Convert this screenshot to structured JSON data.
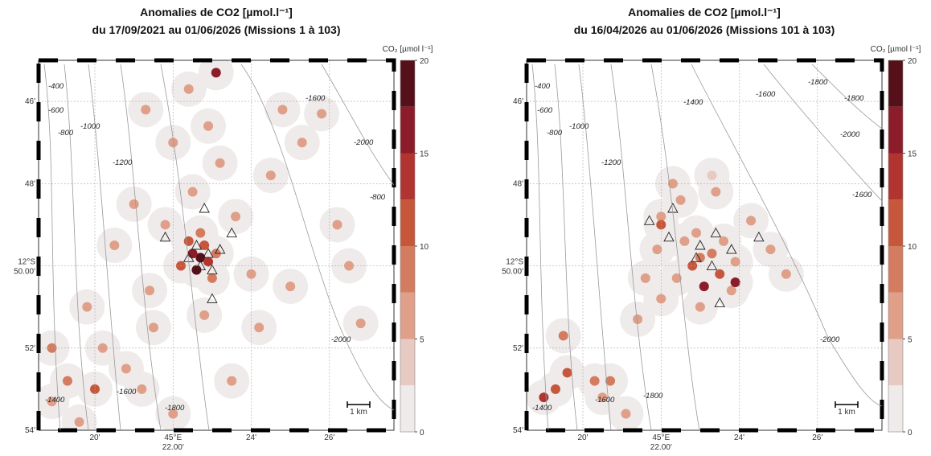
{
  "maps": [
    {
      "title": "Anomalies de CO2 [µmol.l⁻¹]",
      "subtitle": "du 17/09/2021 au 01/06/2026 (Missions 1 à 103)",
      "colorbar": {
        "label": "CO₂ [µmol l⁻¹]",
        "lim": [
          0,
          20
        ],
        "ticks": [
          0,
          5,
          10,
          15,
          20
        ],
        "colors": [
          "#efebeb",
          "#e7cbc2",
          "#df9f88",
          "#d47c60",
          "#c6573b",
          "#b13430",
          "#8c1c29",
          "#561019"
        ]
      },
      "lon_lim": [
        18.56,
        27.65
      ],
      "lat_lim": [
        45,
        54
      ],
      "lon_ticks": [
        {
          "value": 20,
          "label": "20'"
        },
        {
          "value": 22,
          "label": "45°E",
          "sublabel": "22.00'"
        },
        {
          "value": 24,
          "label": "24'"
        },
        {
          "value": 26,
          "label": "26'"
        }
      ],
      "lat_ticks": [
        {
          "value": 46,
          "label": "46'"
        },
        {
          "value": 48,
          "label": "48'"
        },
        {
          "value": 50,
          "label": "12°S",
          "sublabel": "50.00'"
        },
        {
          "value": 52,
          "label": "52'"
        },
        {
          "value": 54,
          "label": "54'"
        }
      ],
      "contour_labels": [
        "-400",
        "-600",
        "-800",
        "-1000",
        "-1200",
        "-1400",
        "-1600",
        "-1800",
        "-2000",
        "-1600",
        "-2000",
        "-800"
      ],
      "scale_label": "1 km",
      "points": {
        "lon": [
          22.7,
          22.5,
          22.9,
          22.6,
          22.8,
          22.4,
          23.1,
          22.2,
          23.0,
          22.7,
          21.8,
          23.6,
          21.4,
          24.0,
          22.5,
          23.2,
          22.9,
          22.0,
          24.5,
          25.3,
          25.8,
          21.0,
          20.5,
          19.8,
          20.2,
          19.3,
          18.9,
          19.6,
          20.8,
          21.5,
          22.8,
          24.2,
          25.0,
          26.5,
          26.8,
          21.2,
          22.0,
          23.5,
          18.9,
          20.0,
          22.4,
          21.3,
          26.2,
          24.8,
          23.1
        ],
        "lat": [
          49.8,
          49.7,
          49.9,
          50.1,
          49.5,
          49.4,
          49.7,
          50.0,
          50.3,
          49.2,
          49.0,
          48.8,
          50.6,
          50.2,
          48.2,
          47.5,
          46.6,
          47.0,
          47.8,
          47.0,
          46.3,
          48.5,
          49.5,
          51.0,
          52.0,
          52.8,
          53.3,
          53.8,
          52.5,
          51.5,
          51.2,
          51.5,
          50.5,
          50.0,
          51.4,
          53.0,
          53.6,
          52.8,
          52.0,
          53.0,
          45.7,
          46.2,
          49.0,
          46.2,
          45.3
        ],
        "values": [
          18,
          16,
          14,
          19,
          12,
          11,
          9,
          10,
          8,
          9,
          7,
          7,
          6,
          7,
          6,
          6,
          7,
          6,
          5,
          6,
          6,
          6,
          6,
          6,
          7,
          8,
          6,
          6,
          6,
          7,
          6,
          6,
          6,
          5,
          6,
          6,
          6,
          6,
          9,
          10,
          7,
          6,
          6,
          6,
          16
        ]
      },
      "triangles": {
        "lon": [
          22.6,
          22.9,
          23.2,
          22.7,
          23.0,
          22.4,
          22.8,
          21.8,
          23.5,
          23.0
        ],
        "lat": [
          49.5,
          49.7,
          49.6,
          50.0,
          50.1,
          49.8,
          48.6,
          49.3,
          49.2,
          50.8
        ]
      }
    },
    {
      "title": "Anomalies de CO2 [µmol.l⁻¹]",
      "subtitle": "du 16/04/2026 au 01/06/2026 (Missions 101 à 103)",
      "colorbar": {
        "label": "CO₂ [µmol l⁻¹]",
        "lim": [
          0,
          20
        ],
        "ticks": [
          0,
          5,
          10,
          15,
          20
        ],
        "colors": [
          "#efebeb",
          "#e7cbc2",
          "#df9f88",
          "#d47c60",
          "#c6573b",
          "#b13430",
          "#8c1c29",
          "#561019"
        ]
      },
      "lon_lim": [
        18.56,
        27.65
      ],
      "lat_lim": [
        45,
        54
      ],
      "lon_ticks": [
        {
          "value": 20,
          "label": "20'"
        },
        {
          "value": 22,
          "label": "45°E",
          "sublabel": "22.00'"
        },
        {
          "value": 24,
          "label": "24'"
        },
        {
          "value": 26,
          "label": "26'"
        }
      ],
      "lat_ticks": [
        {
          "value": 46,
          "label": "46'"
        },
        {
          "value": 48,
          "label": "48'"
        },
        {
          "value": 50,
          "label": "12°S",
          "sublabel": "50.00'"
        },
        {
          "value": 52,
          "label": "52'"
        },
        {
          "value": 54,
          "label": "54'"
        }
      ],
      "contour_labels": [
        "-400",
        "-600",
        "-800",
        "-1000",
        "-1200",
        "-1400",
        "-1600",
        "-1800",
        "-2000",
        "-1600",
        "-1800",
        "-2000",
        "-1400",
        "-1600",
        "-1800"
      ],
      "scale_label": "1 km",
      "points": {
        "lon": [
          23.0,
          23.3,
          22.8,
          23.5,
          23.6,
          22.6,
          23.9,
          22.4,
          23.1,
          22.9,
          22.0,
          22.5,
          23.4,
          24.3,
          24.8,
          25.2,
          21.9,
          21.6,
          22.0,
          23.0,
          23.8,
          22.3,
          23.3,
          21.4,
          19.6,
          20.3,
          20.7,
          19.0,
          19.3,
          21.1,
          20.5,
          19.5,
          22.0,
          23.9
        ],
        "lat": [
          49.8,
          49.7,
          50.0,
          50.2,
          49.4,
          49.4,
          49.9,
          50.3,
          50.5,
          49.2,
          48.8,
          48.4,
          48.2,
          48.9,
          49.6,
          50.2,
          49.6,
          50.3,
          50.8,
          51.0,
          50.6,
          48.0,
          47.8,
          51.3,
          52.6,
          52.8,
          52.8,
          53.2,
          53.0,
          53.6,
          53.2,
          51.7,
          49.0,
          50.4
        ],
        "values": [
          9,
          8,
          12,
          10,
          7,
          6,
          6,
          6,
          15,
          6,
          6,
          6,
          6,
          6,
          6,
          6,
          6,
          6,
          6,
          6,
          6,
          5,
          4,
          6,
          11,
          9,
          9,
          14,
          12,
          6,
          6,
          8,
          12,
          16
        ]
      },
      "triangles": {
        "lon": [
          21.7,
          22.3,
          23.0,
          23.4,
          22.9,
          23.3,
          23.8,
          24.5,
          23.5,
          22.2
        ],
        "lat": [
          48.9,
          48.6,
          49.5,
          49.2,
          49.8,
          50.0,
          49.6,
          49.3,
          50.9,
          49.3
        ]
      }
    }
  ]
}
